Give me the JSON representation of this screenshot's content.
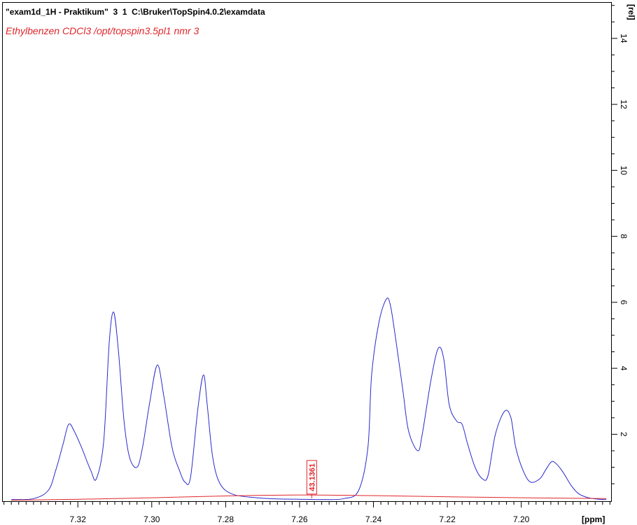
{
  "header": {
    "dataset_line": "\"exam1d_1H - Praktikum\"  3  1  C:\\Bruker\\TopSpin4.0.2\\examdata",
    "sample_line": "Ethylbenzen CDCl3 /opt/topspin3.5pl1 nmr 3"
  },
  "colors": {
    "spectrum": "#2a2acd",
    "integral": "#e0262b",
    "title": "#000000",
    "subtitle": "#e0262b"
  },
  "chart_data": {
    "type": "line",
    "title": "",
    "xlabel": "[ppm]",
    "ylabel": "[rel]",
    "x_reversed": true,
    "xlim": [
      7.3405,
      7.1755
    ],
    "ylim": [
      -0.05,
      15.1
    ],
    "x_ticks": [
      7.32,
      7.3,
      7.28,
      7.26,
      7.24,
      7.22,
      7.2
    ],
    "x_tick_labels": [
      "7.32",
      "7.30",
      "7.28",
      "7.26",
      "7.24",
      "7.22",
      "7.20"
    ],
    "y_ticks": [
      2,
      4,
      6,
      8,
      10,
      12,
      14
    ],
    "y_tick_labels": [
      "2",
      "4",
      "6",
      "8",
      "10",
      "12",
      "14"
    ],
    "grid": false,
    "series": [
      {
        "role": "spectrum",
        "x": [
          7.338,
          7.332,
          7.328,
          7.326,
          7.324,
          7.3225,
          7.321,
          7.319,
          7.3165,
          7.315,
          7.313,
          7.3115,
          7.3103,
          7.309,
          7.3075,
          7.306,
          7.304,
          7.3025,
          7.3005,
          7.2985,
          7.2968,
          7.2945,
          7.2925,
          7.291,
          7.2895,
          7.2875,
          7.286,
          7.285,
          7.2835,
          7.2815,
          7.278,
          7.272,
          7.266,
          7.26,
          7.254,
          7.248,
          7.244,
          7.2415,
          7.2405,
          7.2385,
          7.2365,
          7.2354,
          7.234,
          7.232,
          7.2305,
          7.228,
          7.2268,
          7.2245,
          7.2225,
          7.221,
          7.2195,
          7.2175,
          7.216,
          7.2145,
          7.2125,
          7.2105,
          7.209,
          7.207,
          7.2045,
          7.2028,
          7.2015,
          7.1995,
          7.1975,
          7.195,
          7.1935,
          7.192,
          7.191,
          7.189,
          7.1865,
          7.1845,
          7.182,
          7.179,
          7.177
        ],
        "values": [
          0.02,
          0.05,
          0.3,
          0.9,
          1.7,
          2.3,
          2.1,
          1.6,
          0.9,
          0.65,
          1.8,
          4.8,
          5.7,
          4.5,
          2.4,
          1.3,
          1.0,
          1.6,
          3.0,
          4.1,
          3.2,
          1.6,
          0.9,
          0.55,
          0.7,
          2.8,
          3.8,
          2.9,
          1.3,
          0.5,
          0.18,
          0.08,
          0.04,
          0.03,
          0.02,
          0.05,
          0.3,
          1.6,
          3.8,
          5.4,
          6.1,
          5.9,
          4.9,
          3.3,
          2.1,
          1.5,
          2.0,
          3.6,
          4.6,
          4.3,
          2.9,
          2.4,
          2.3,
          1.7,
          1.0,
          0.65,
          0.75,
          2.0,
          2.7,
          2.5,
          1.6,
          0.9,
          0.55,
          0.65,
          0.9,
          1.15,
          1.15,
          0.9,
          0.45,
          0.2,
          0.08,
          0.03,
          0.02
        ]
      },
      {
        "role": "integral",
        "x": [
          7.338,
          7.31,
          7.28,
          7.26,
          7.24,
          7.21,
          7.177
        ],
        "values": [
          0.0,
          0.05,
          0.13,
          0.16,
          0.14,
          0.09,
          0.05
        ]
      }
    ],
    "annotations": [
      {
        "text": "43.1361",
        "x": 7.2567,
        "y": 0.06,
        "color": "#e0262b",
        "orientation": "vertical"
      }
    ]
  }
}
